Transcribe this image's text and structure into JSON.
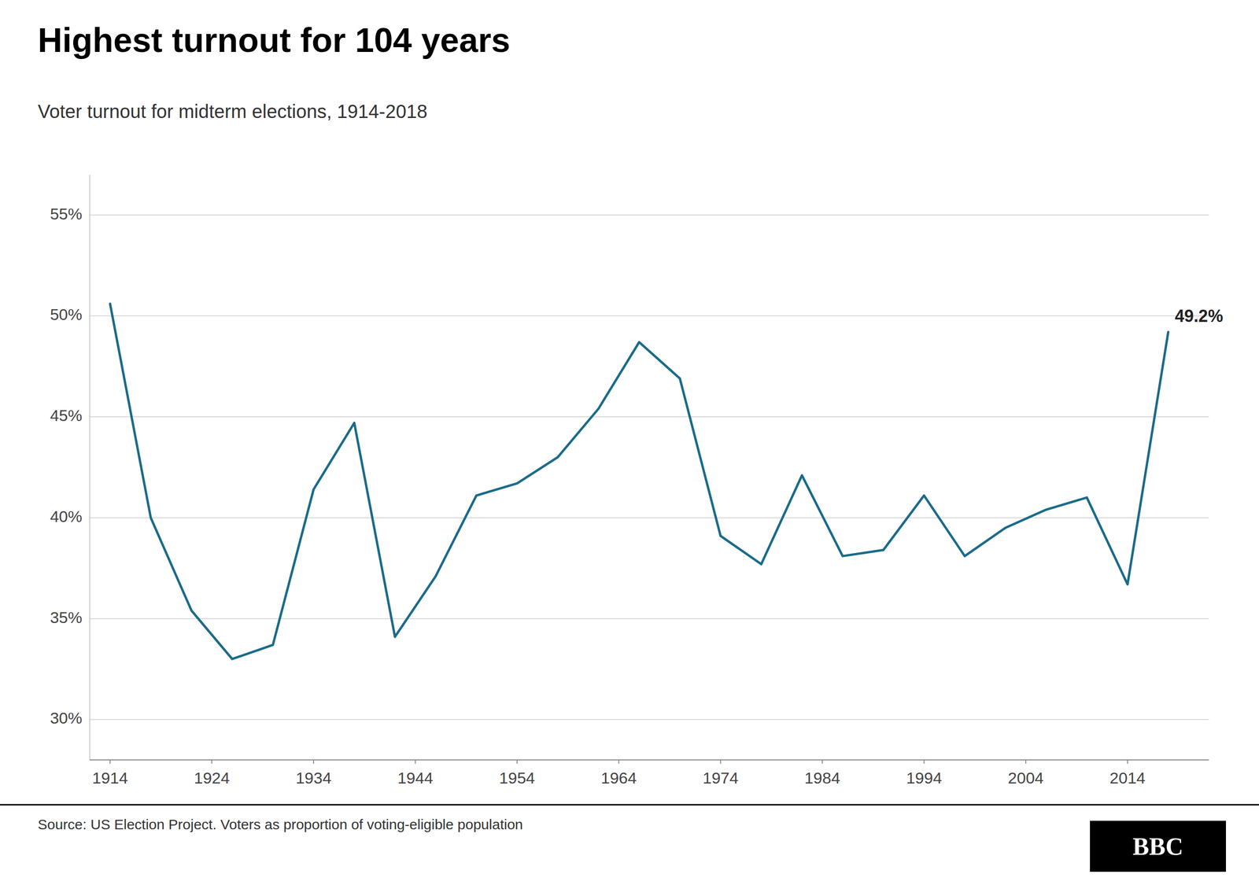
{
  "chart_data": {
    "type": "line",
    "title": "Highest turnout for 104 years",
    "subtitle": "Voter turnout for midterm elections, 1914-2018",
    "source": "Source: US Election Project. Voters as proportion of voting-eligible population",
    "logo": "BBC",
    "x": [
      1914,
      1918,
      1922,
      1926,
      1930,
      1934,
      1938,
      1942,
      1946,
      1950,
      1954,
      1958,
      1962,
      1966,
      1970,
      1974,
      1978,
      1982,
      1986,
      1990,
      1994,
      1998,
      2002,
      2006,
      2010,
      2014,
      2018
    ],
    "values": [
      50.6,
      40.0,
      35.4,
      33.0,
      33.7,
      41.4,
      44.7,
      34.1,
      37.1,
      41.1,
      41.7,
      43.0,
      45.4,
      48.7,
      46.9,
      39.1,
      37.7,
      42.1,
      38.1,
      38.4,
      41.1,
      38.1,
      39.5,
      40.4,
      41.0,
      36.7,
      49.2
    ],
    "color": "#1a6b8a",
    "annotations": [
      {
        "x": 2018,
        "y": 49.2,
        "text": "49.2%"
      }
    ],
    "xlim": [
      1912,
      2022
    ],
    "xticks": [
      1914,
      1924,
      1934,
      1944,
      1954,
      1964,
      1974,
      1984,
      1994,
      2004,
      2014
    ],
    "ylim": [
      28,
      57
    ],
    "yticks": [
      {
        "value": 30,
        "label": "30%"
      },
      {
        "value": 35,
        "label": "35%"
      },
      {
        "value": 40,
        "label": "40%"
      },
      {
        "value": 45,
        "label": "45%"
      },
      {
        "value": 50,
        "label": "50%"
      },
      {
        "value": 55,
        "label": "55%"
      }
    ],
    "grid": true
  }
}
